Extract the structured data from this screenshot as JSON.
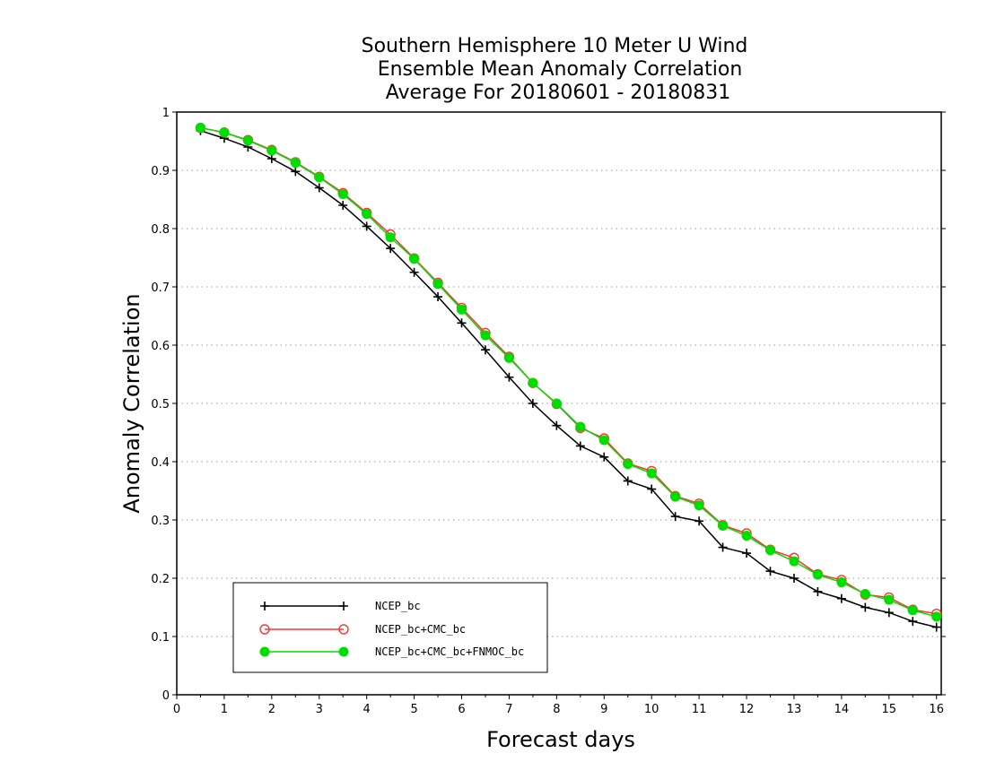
{
  "chart_data": {
    "type": "line",
    "title": [
      "Southern Hemisphere 10 Meter U Wind",
      "Ensemble Mean Anomaly Correlation",
      "Average For 20180601 - 20180831"
    ],
    "xlabel": "Forecast days",
    "ylabel": "Anomaly Correlation",
    "xlim": [
      0,
      16.1
    ],
    "ylim": [
      0,
      1
    ],
    "x_ticks": [
      0,
      1,
      2,
      3,
      4,
      5,
      6,
      7,
      8,
      9,
      10,
      11,
      12,
      13,
      14,
      15,
      16
    ],
    "y_ticks": [
      0,
      0.1,
      0.2,
      0.3,
      0.4,
      0.5,
      0.6,
      0.7,
      0.8,
      0.9,
      1
    ],
    "y_tick_labels": [
      "0",
      "0.1",
      "0.2",
      "0.3",
      "0.4",
      "0.5",
      "0.6",
      "0.7",
      "0.8",
      "0.9",
      "1"
    ],
    "grid": "horizontal dotted",
    "legend_position": "bottom-left",
    "x": [
      0.5,
      1,
      1.5,
      2,
      2.5,
      3,
      3.5,
      4,
      4.5,
      5,
      5.5,
      6,
      6.5,
      7,
      7.5,
      8,
      8.5,
      9,
      9.5,
      10,
      10.5,
      11,
      11.5,
      12,
      12.5,
      13,
      13.5,
      14,
      14.5,
      15,
      15.5,
      16
    ],
    "series": [
      {
        "name": "NCEP_bc",
        "color": "#000000",
        "marker": "plus",
        "values": [
          0.968,
          0.955,
          0.94,
          0.92,
          0.898,
          0.87,
          0.84,
          0.804,
          0.766,
          0.725,
          0.683,
          0.638,
          0.592,
          0.545,
          0.5,
          0.462,
          0.427,
          0.408,
          0.367,
          0.353,
          0.306,
          0.298,
          0.253,
          0.243,
          0.212,
          0.2,
          0.177,
          0.165,
          0.15,
          0.141,
          0.126,
          0.116
        ]
      },
      {
        "name": "NCEP_bc+CMC_bc",
        "color": "#ff3333",
        "marker": "open-circle",
        "values": [
          0.973,
          0.965,
          0.952,
          0.935,
          0.914,
          0.889,
          0.861,
          0.827,
          0.79,
          0.749,
          0.707,
          0.664,
          0.621,
          0.58,
          0.535,
          0.499,
          0.458,
          0.44,
          0.397,
          0.384,
          0.341,
          0.328,
          0.291,
          0.277,
          0.249,
          0.235,
          0.207,
          0.197,
          0.172,
          0.167,
          0.146,
          0.139
        ]
      },
      {
        "name": "NCEP_bc+CMC_bc+FNMOC_bc",
        "color": "#00dd00",
        "marker": "filled-circle",
        "values": [
          0.973,
          0.965,
          0.951,
          0.934,
          0.913,
          0.888,
          0.859,
          0.825,
          0.785,
          0.748,
          0.705,
          0.661,
          0.617,
          0.578,
          0.535,
          0.5,
          0.46,
          0.437,
          0.396,
          0.38,
          0.34,
          0.325,
          0.29,
          0.273,
          0.248,
          0.229,
          0.206,
          0.193,
          0.173,
          0.163,
          0.145,
          0.134
        ]
      }
    ]
  }
}
